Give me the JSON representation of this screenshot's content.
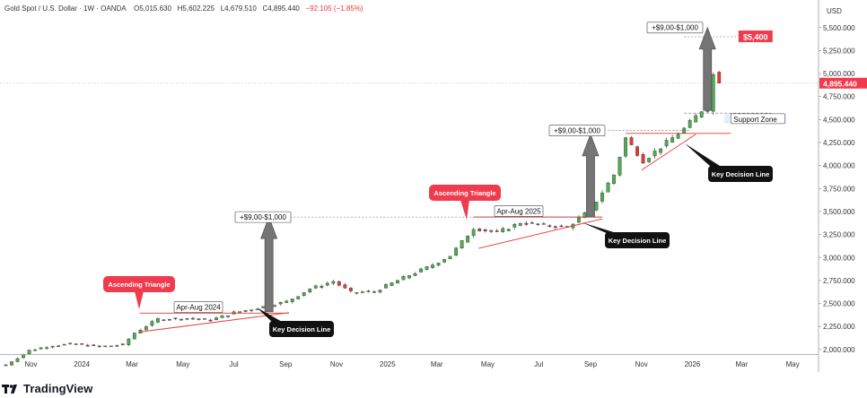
{
  "header": {
    "symbol": "Gold Spot / U.S. Dollar",
    "interval": "1W",
    "source": "OANDA",
    "open_label": "O",
    "open": "5,015.630",
    "high_label": "H",
    "high": "5,602.225",
    "low_label": "L",
    "low": "4,679.510",
    "close_label": "C",
    "close": "4,895.440",
    "change": "−92.105 (−1.85%)"
  },
  "currency": "USD",
  "brand": {
    "name": "TradingView"
  },
  "colors": {
    "up": "#4caf50",
    "down": "#e53935",
    "label_red": "#ef3b4e",
    "arrow": "#757575",
    "line": "#e53935",
    "support": "#e3ecfb"
  },
  "chart_data": {
    "type": "candlestick",
    "y_range": [
      1950,
      5800
    ],
    "y_ticks": [
      2000,
      2250,
      2500,
      2750,
      3000,
      3250,
      3500,
      3750,
      4000,
      4250,
      4500,
      4750,
      5000,
      5250,
      5500
    ],
    "y_tick_labels": [
      "2,000.000",
      "2,250.000",
      "2,500.000",
      "2,750.000",
      "3,000.000",
      "3,250.000",
      "3,500.000",
      "3,750.000",
      "4,000.000",
      "4,250.000",
      "4,500.000",
      "4,750.000",
      "5,000.000",
      "5,250.000",
      "5,500.000"
    ],
    "x_range": [
      "2023-09-25",
      "2026-06-01"
    ],
    "x_ticks": [
      {
        "date": "2023-11-01",
        "label": "Nov"
      },
      {
        "date": "2024-01-01",
        "label": "2024"
      },
      {
        "date": "2024-03-01",
        "label": "Mar"
      },
      {
        "date": "2024-05-01",
        "label": "May"
      },
      {
        "date": "2024-07-01",
        "label": "Jul"
      },
      {
        "date": "2024-09-01",
        "label": "Sep"
      },
      {
        "date": "2024-11-01",
        "label": "Nov"
      },
      {
        "date": "2025-01-01",
        "label": "2025"
      },
      {
        "date": "2025-03-01",
        "label": "Mar"
      },
      {
        "date": "2025-05-01",
        "label": "May"
      },
      {
        "date": "2025-07-01",
        "label": "Jul"
      },
      {
        "date": "2025-09-01",
        "label": "Sep"
      },
      {
        "date": "2025-11-01",
        "label": "Nov"
      },
      {
        "date": "2026-01-01",
        "label": "2026"
      },
      {
        "date": "2026-03-01",
        "label": "Mar"
      },
      {
        "date": "2026-05-01",
        "label": "May"
      }
    ],
    "closes": [
      [
        "2023-10-02",
        1833
      ],
      [
        "2023-10-30",
        1990
      ],
      [
        "2023-11-27",
        2045
      ],
      [
        "2023-12-25",
        2060
      ],
      [
        "2024-01-22",
        2030
      ],
      [
        "2024-02-19",
        2050
      ],
      [
        "2024-03-04",
        2180
      ],
      [
        "2024-04-01",
        2330
      ],
      [
        "2024-05-06",
        2340
      ],
      [
        "2024-06-03",
        2320
      ],
      [
        "2024-07-01",
        2400
      ],
      [
        "2024-07-29",
        2450
      ],
      [
        "2024-09-02",
        2520
      ],
      [
        "2024-09-30",
        2660
      ],
      [
        "2024-10-28",
        2740
      ],
      [
        "2024-11-18",
        2620
      ],
      [
        "2024-12-16",
        2630
      ],
      [
        "2025-01-20",
        2780
      ],
      [
        "2025-02-17",
        2890
      ],
      [
        "2025-03-17",
        3020
      ],
      [
        "2025-04-14",
        3320
      ],
      [
        "2025-05-12",
        3270
      ],
      [
        "2025-06-09",
        3380
      ],
      [
        "2025-07-07",
        3350
      ],
      [
        "2025-08-04",
        3330
      ],
      [
        "2025-09-01",
        3520
      ],
      [
        "2025-09-29",
        3900
      ],
      [
        "2025-10-13",
        4300
      ],
      [
        "2025-11-03",
        4050
      ],
      [
        "2025-12-01",
        4250
      ],
      [
        "2025-12-22",
        4400
      ],
      [
        "2026-01-12",
        4600
      ],
      [
        "2026-01-26",
        4990
      ],
      [
        "2026-02-02",
        4895.44
      ]
    ],
    "last_price": 4895.44,
    "last_price_label": "4,895.440",
    "target_price": 5400,
    "target_price_label": "$5,400",
    "support_zone": {
      "low": 4460,
      "high": 4560,
      "label": "Support Zone"
    },
    "annotations": {
      "ascending_triangle_1": "Ascending Triangle",
      "ascending_triangle_2": "Ascending Triangle",
      "range_1": "Apr-Aug 2024",
      "range_2": "Apr-Aug 2025",
      "move_1": "+$9,00-$1,000",
      "move_2": "+$9,00-$1,000",
      "move_3": "+$9,00-$1,000",
      "decision_1": "Key Decision Line",
      "decision_2": "Key Decision Line",
      "decision_3": "Key Decision Line"
    }
  }
}
